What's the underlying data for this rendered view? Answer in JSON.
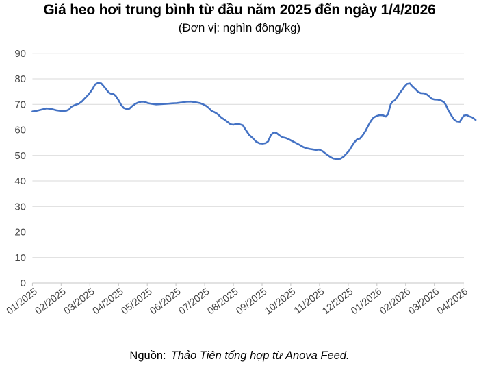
{
  "title": "Giá heo hơi trung bình từ đầu năm 2025 đến ngày 1/4/2026",
  "subtitle": "(Đơn vị: nghìn đồng/kg)",
  "source": {
    "prefix": "Nguồn:",
    "text": "Thảo Tiên tổng hợp từ Anova Feed."
  },
  "chart_data": {
    "type": "line",
    "title": "Giá heo hơi trung bình từ đầu năm 2025 đến ngày 1/4/2026",
    "unit": "nghìn đồng/kg",
    "xlabel": "",
    "ylabel": "",
    "ylim": [
      0,
      90
    ],
    "grid": true,
    "legend": "none",
    "line_color": "#4472c4",
    "grid_color": "#d9d9d9",
    "axis_color": "#c6c6c6",
    "tick_label_color": "#454545",
    "y_ticks": [
      0,
      10,
      20,
      30,
      40,
      50,
      60,
      70,
      80,
      90
    ],
    "x_tick_labels": [
      "01/2025",
      "02/2025",
      "03/2025",
      "04/2025",
      "05/2025",
      "06/2025",
      "07/2025",
      "08/2025",
      "09/2025",
      "10/2025",
      "11/2025",
      "12/2025",
      "01/2026",
      "02/2026",
      "03/2026",
      "04/2026"
    ],
    "series": [
      {
        "name": "Giá heo hơi trung bình (nghìn đồng/kg)",
        "points": [
          [
            0.0,
            67.2
          ],
          [
            0.13,
            67.4
          ],
          [
            0.3,
            67.9
          ],
          [
            0.49,
            68.4
          ],
          [
            0.66,
            68.2
          ],
          [
            0.82,
            67.7
          ],
          [
            0.99,
            67.4
          ],
          [
            1.18,
            67.5
          ],
          [
            1.28,
            68.0
          ],
          [
            1.35,
            69.0
          ],
          [
            1.49,
            69.8
          ],
          [
            1.61,
            70.2
          ],
          [
            1.73,
            71.2
          ],
          [
            1.83,
            72.4
          ],
          [
            1.92,
            73.4
          ],
          [
            2.02,
            74.8
          ],
          [
            2.11,
            76.3
          ],
          [
            2.18,
            77.8
          ],
          [
            2.28,
            78.4
          ],
          [
            2.4,
            78.2
          ],
          [
            2.49,
            77.0
          ],
          [
            2.59,
            75.6
          ],
          [
            2.66,
            74.6
          ],
          [
            2.73,
            74.2
          ],
          [
            2.83,
            74.0
          ],
          [
            2.9,
            73.3
          ],
          [
            2.99,
            71.8
          ],
          [
            3.09,
            69.8
          ],
          [
            3.18,
            68.6
          ],
          [
            3.28,
            68.2
          ],
          [
            3.38,
            68.3
          ],
          [
            3.47,
            69.3
          ],
          [
            3.57,
            70.1
          ],
          [
            3.66,
            70.6
          ],
          [
            3.78,
            71.0
          ],
          [
            3.9,
            71.0
          ],
          [
            4.02,
            70.5
          ],
          [
            4.16,
            70.2
          ],
          [
            4.31,
            70.0
          ],
          [
            4.47,
            70.1
          ],
          [
            4.66,
            70.2
          ],
          [
            4.85,
            70.4
          ],
          [
            5.02,
            70.5
          ],
          [
            5.19,
            70.7
          ],
          [
            5.35,
            71.0
          ],
          [
            5.52,
            71.1
          ],
          [
            5.69,
            70.8
          ],
          [
            5.83,
            70.5
          ],
          [
            5.95,
            70.0
          ],
          [
            6.05,
            69.4
          ],
          [
            6.14,
            68.6
          ],
          [
            6.24,
            67.4
          ],
          [
            6.33,
            67.0
          ],
          [
            6.45,
            66.2
          ],
          [
            6.57,
            64.9
          ],
          [
            6.69,
            64.0
          ],
          [
            6.81,
            63.0
          ],
          [
            6.9,
            62.2
          ],
          [
            7.0,
            62.0
          ],
          [
            7.1,
            62.3
          ],
          [
            7.21,
            62.2
          ],
          [
            7.33,
            61.8
          ],
          [
            7.43,
            60.0
          ],
          [
            7.55,
            58.0
          ],
          [
            7.67,
            56.8
          ],
          [
            7.79,
            55.4
          ],
          [
            7.91,
            54.7
          ],
          [
            8.02,
            54.6
          ],
          [
            8.12,
            54.8
          ],
          [
            8.21,
            55.5
          ],
          [
            8.31,
            58.0
          ],
          [
            8.41,
            59.0
          ],
          [
            8.5,
            58.8
          ],
          [
            8.6,
            57.9
          ],
          [
            8.71,
            57.1
          ],
          [
            8.83,
            56.8
          ],
          [
            8.95,
            56.2
          ],
          [
            9.07,
            55.5
          ],
          [
            9.19,
            54.8
          ],
          [
            9.31,
            54.1
          ],
          [
            9.43,
            53.3
          ],
          [
            9.55,
            52.8
          ],
          [
            9.67,
            52.5
          ],
          [
            9.79,
            52.3
          ],
          [
            9.88,
            52.1
          ],
          [
            9.98,
            52.3
          ],
          [
            10.1,
            51.7
          ],
          [
            10.19,
            50.9
          ],
          [
            10.29,
            50.1
          ],
          [
            10.38,
            49.4
          ],
          [
            10.48,
            48.8
          ],
          [
            10.6,
            48.6
          ],
          [
            10.72,
            48.7
          ],
          [
            10.84,
            49.5
          ],
          [
            10.93,
            50.6
          ],
          [
            11.03,
            51.8
          ],
          [
            11.12,
            53.5
          ],
          [
            11.22,
            55.2
          ],
          [
            11.31,
            56.3
          ],
          [
            11.41,
            56.6
          ],
          [
            11.5,
            57.8
          ],
          [
            11.6,
            59.5
          ],
          [
            11.69,
            61.5
          ],
          [
            11.79,
            63.5
          ],
          [
            11.88,
            64.8
          ],
          [
            11.98,
            65.4
          ],
          [
            12.1,
            65.8
          ],
          [
            12.22,
            65.7
          ],
          [
            12.31,
            65.2
          ],
          [
            12.39,
            66.2
          ],
          [
            12.43,
            68.0
          ],
          [
            12.48,
            70.0
          ],
          [
            12.55,
            71.2
          ],
          [
            12.62,
            71.5
          ],
          [
            12.7,
            72.8
          ],
          [
            12.79,
            74.3
          ],
          [
            12.89,
            75.8
          ],
          [
            12.96,
            77.0
          ],
          [
            13.05,
            78.0
          ],
          [
            13.15,
            78.2
          ],
          [
            13.24,
            77.0
          ],
          [
            13.34,
            76.0
          ],
          [
            13.43,
            74.9
          ],
          [
            13.53,
            74.4
          ],
          [
            13.65,
            74.3
          ],
          [
            13.75,
            73.8
          ],
          [
            13.84,
            72.9
          ],
          [
            13.91,
            72.2
          ],
          [
            14.01,
            71.9
          ],
          [
            14.13,
            71.8
          ],
          [
            14.25,
            71.4
          ],
          [
            14.34,
            70.8
          ],
          [
            14.41,
            69.6
          ],
          [
            14.48,
            67.8
          ],
          [
            14.56,
            66.3
          ],
          [
            14.63,
            65.0
          ],
          [
            14.7,
            63.9
          ],
          [
            14.79,
            63.3
          ],
          [
            14.89,
            63.2
          ],
          [
            14.96,
            64.5
          ],
          [
            15.03,
            65.6
          ],
          [
            15.13,
            65.8
          ],
          [
            15.22,
            65.3
          ],
          [
            15.32,
            64.9
          ],
          [
            15.39,
            64.3
          ],
          [
            15.44,
            63.9
          ]
        ]
      }
    ]
  }
}
